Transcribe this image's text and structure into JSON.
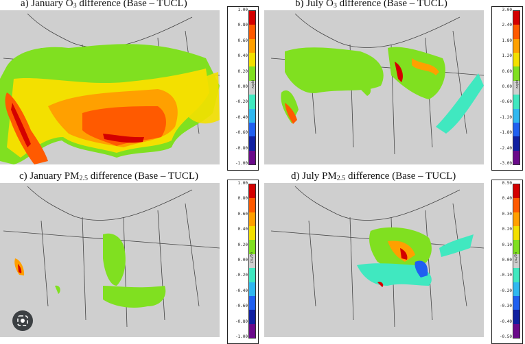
{
  "panels": [
    {
      "id": "a",
      "prefix": "a) January O",
      "sub": "3",
      "suffix": " difference (Base – TUCL)",
      "unit": "ppbv",
      "ticks": [
        "1.00",
        "0.80",
        "0.60",
        "0.40",
        "0.20",
        "0.00",
        "-0.20",
        "-0.40",
        "-0.60",
        "-0.80",
        "-1.00"
      ]
    },
    {
      "id": "b",
      "prefix": "b) July O",
      "sub": "3",
      "suffix": " difference (Base – TUCL)",
      "unit": "ppbv",
      "ticks": [
        "3.00",
        "2.40",
        "1.80",
        "1.20",
        "0.60",
        "0.00",
        "-0.60",
        "-1.20",
        "-1.80",
        "-2.40",
        "-3.00"
      ]
    },
    {
      "id": "c",
      "prefix": "c) January PM",
      "sub": "2.5",
      "suffix": " difference (Base – TUCL)",
      "unit": "ug/m3",
      "ticks": [
        "1.00",
        "0.80",
        "0.60",
        "0.40",
        "0.20",
        "0.00",
        "-0.20",
        "-0.40",
        "-0.60",
        "-0.80",
        "-1.00"
      ]
    },
    {
      "id": "d",
      "prefix": "d) July PM",
      "sub": "2.5",
      "suffix": " difference (Base – TUCL)",
      "unit": "ug/m3",
      "ticks": [
        "0.50",
        "0.40",
        "0.30",
        "0.20",
        "0.10",
        "0.00",
        "-0.10",
        "-0.20",
        "-0.30",
        "-0.40",
        "-0.50"
      ]
    }
  ],
  "colors": {
    "background": "#cfcfcf",
    "scale": [
      "#d40000",
      "#ff5a00",
      "#ffa000",
      "#f3e000",
      "#80e020",
      "#cfcfcf",
      "#40e8c0",
      "#30b8f0",
      "#2060f0",
      "#1020a0",
      "#6a0a8a"
    ]
  },
  "lens_icon": "lens-search-icon"
}
